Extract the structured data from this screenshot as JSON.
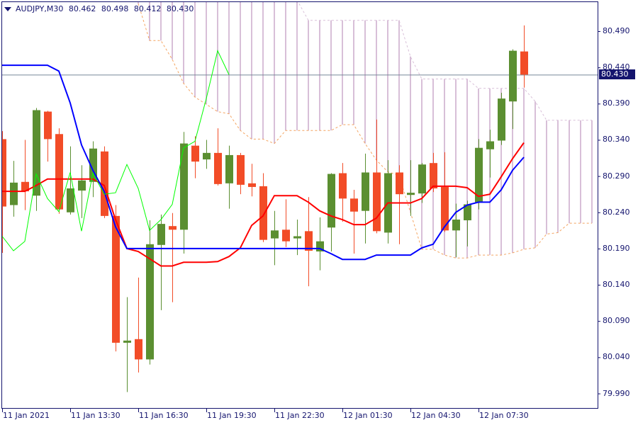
{
  "header": {
    "symbol_timeframe": "AUDJPY,M30",
    "open": "80.462",
    "high": "80.498",
    "low": "80.412",
    "close": "80.430"
  },
  "current_price": "80.430",
  "price_axis_labels": [
    "80.490",
    "80.440",
    "80.390",
    "80.340",
    "80.290",
    "80.240",
    "80.190",
    "80.140",
    "80.090",
    "80.040",
    "79.990"
  ],
  "time_axis_labels": [
    "11 Jan 2021",
    "11 Jan 13:30",
    "11 Jan 16:30",
    "11 Jan 19:30",
    "11 Jan 22:30",
    "12 Jan 01:30",
    "12 Jan 04:30",
    "12 Jan 07:30"
  ],
  "colors": {
    "bull": "#5b8f31",
    "bear": "#f24c27",
    "tenkan": "#ff0000",
    "kijun": "#0000ff",
    "chikou": "#00ff00",
    "senkou_a": "#f4a460",
    "senkou_b": "#d8bfd8",
    "axis_text": "#14146e",
    "price_line": "#778899"
  },
  "chart_data": {
    "type": "candlestick",
    "indicator": "ichimoku",
    "ylim": [
      79.969,
      80.533
    ],
    "grid": false,
    "x_ticks": [
      {
        "bar": 0,
        "label": "11 Jan 2021"
      },
      {
        "bar": 6,
        "label": "11 Jan 13:30"
      },
      {
        "bar": 12,
        "label": "11 Jan 16:30"
      },
      {
        "bar": 18,
        "label": "11 Jan 19:30"
      },
      {
        "bar": 24,
        "label": "11 Jan 22:30"
      },
      {
        "bar": 30,
        "label": "12 Jan 01:30"
      },
      {
        "bar": 36,
        "label": "12 Jan 04:30"
      },
      {
        "bar": 42,
        "label": "12 Jan 07:30"
      }
    ],
    "y_ticks": [
      80.49,
      80.44,
      80.39,
      80.34,
      80.29,
      80.24,
      80.19,
      80.14,
      80.09,
      80.04,
      79.99
    ],
    "candles": [
      [
        80.341,
        80.352,
        80.184,
        80.248
      ],
      [
        80.25,
        80.311,
        80.234,
        80.281
      ],
      [
        80.282,
        80.34,
        80.243,
        80.269
      ],
      [
        80.263,
        80.384,
        80.242,
        80.381
      ],
      [
        80.379,
        80.38,
        80.31,
        80.341
      ],
      [
        80.348,
        80.356,
        80.238,
        80.244
      ],
      [
        80.24,
        80.331,
        80.237,
        80.273
      ],
      [
        80.27,
        80.305,
        80.232,
        80.284
      ],
      [
        80.282,
        80.338,
        80.261,
        80.328
      ],
      [
        80.324,
        80.331,
        80.232,
        80.235
      ],
      [
        80.235,
        80.25,
        80.048,
        80.06
      ],
      [
        80.06,
        80.123,
        79.992,
        80.063
      ],
      [
        80.065,
        80.15,
        80.019,
        80.037
      ],
      [
        80.037,
        80.229,
        80.03,
        80.196
      ],
      [
        80.195,
        80.237,
        80.105,
        80.224
      ],
      [
        80.221,
        80.239,
        80.116,
        80.216
      ],
      [
        80.216,
        80.351,
        80.183,
        80.335
      ],
      [
        80.332,
        80.345,
        80.287,
        80.31
      ],
      [
        80.313,
        80.34,
        80.3,
        80.322
      ],
      [
        80.322,
        80.356,
        80.277,
        80.279
      ],
      [
        80.28,
        80.332,
        80.245,
        80.319
      ],
      [
        80.319,
        80.322,
        80.265,
        80.278
      ],
      [
        80.28,
        80.307,
        80.262,
        80.275
      ],
      [
        80.276,
        80.294,
        80.199,
        80.202
      ],
      [
        80.204,
        80.242,
        80.167,
        80.215
      ],
      [
        80.216,
        80.258,
        80.192,
        80.2
      ],
      [
        80.204,
        80.23,
        80.181,
        80.207
      ],
      [
        80.214,
        80.261,
        80.138,
        80.187
      ],
      [
        80.186,
        80.233,
        80.16,
        80.2
      ],
      [
        80.219,
        80.294,
        80.186,
        80.293
      ],
      [
        80.294,
        80.308,
        80.227,
        80.259
      ],
      [
        80.259,
        80.271,
        80.183,
        80.241
      ],
      [
        80.242,
        80.321,
        80.197,
        80.295
      ],
      [
        80.295,
        80.368,
        80.211,
        80.214
      ],
      [
        80.212,
        80.312,
        80.197,
        80.294
      ],
      [
        80.295,
        80.305,
        80.196,
        80.265
      ],
      [
        80.264,
        80.312,
        80.235,
        80.267
      ],
      [
        80.266,
        80.308,
        80.253,
        80.306
      ],
      [
        80.308,
        80.322,
        80.268,
        80.273
      ],
      [
        80.275,
        80.323,
        80.213,
        80.215
      ],
      [
        80.215,
        80.252,
        80.178,
        80.23
      ],
      [
        80.229,
        80.256,
        80.193,
        80.251
      ],
      [
        80.254,
        80.341,
        80.244,
        80.329
      ],
      [
        80.327,
        80.354,
        80.288,
        80.338
      ],
      [
        80.339,
        80.405,
        80.333,
        80.397
      ],
      [
        80.393,
        80.465,
        80.355,
        80.463
      ],
      [
        80.462,
        80.498,
        80.412,
        80.43
      ]
    ],
    "tenkan": [
      80.269,
      80.269,
      80.269,
      80.277,
      80.286,
      80.286,
      80.286,
      80.286,
      80.286,
      80.277,
      80.23,
      80.19,
      80.186,
      80.176,
      80.166,
      80.166,
      80.171,
      80.171,
      80.171,
      80.172,
      80.179,
      80.191,
      80.222,
      80.235,
      80.263,
      80.263,
      80.263,
      80.254,
      80.242,
      80.235,
      80.23,
      80.223,
      80.223,
      80.232,
      80.253,
      80.253,
      80.253,
      80.259,
      80.276,
      80.276,
      80.276,
      80.274,
      80.262,
      80.265,
      80.289,
      80.314,
      80.336
    ],
    "kijun": [
      80.443,
      80.443,
      80.443,
      80.443,
      80.443,
      80.435,
      80.391,
      80.333,
      80.298,
      80.269,
      80.22,
      80.19,
      80.19,
      80.19,
      80.19,
      80.19,
      80.19,
      80.19,
      80.19,
      80.19,
      80.19,
      80.19,
      80.19,
      80.19,
      80.19,
      80.19,
      80.19,
      80.19,
      80.19,
      80.183,
      80.175,
      80.175,
      80.175,
      80.181,
      80.181,
      80.181,
      80.181,
      80.191,
      80.196,
      80.22,
      80.24,
      80.25,
      80.254,
      80.254,
      80.271,
      80.298,
      80.316
    ],
    "chikou_shift": 26,
    "senkou_start_bar": 12,
    "senkou_a": [
      80.528,
      80.477,
      80.477,
      80.451,
      80.418,
      80.399,
      80.389,
      80.379,
      80.376,
      80.353,
      80.341,
      80.341,
      80.335,
      80.353,
      80.353,
      80.353,
      80.353,
      80.353,
      80.361,
      80.361,
      80.335,
      80.312,
      80.296,
      80.291,
      80.24,
      80.189,
      80.189,
      80.181,
      80.177,
      80.177,
      80.181,
      80.181,
      80.181,
      80.184,
      80.189,
      80.191,
      80.21,
      80.212,
      80.225,
      80.225,
      80.225
    ],
    "senkou_b": [
      80.545,
      80.545,
      80.545,
      80.545,
      80.545,
      80.545,
      80.545,
      80.545,
      80.545,
      80.545,
      80.545,
      80.545,
      80.545,
      80.545,
      80.533,
      80.505,
      80.505,
      80.505,
      80.505,
      80.505,
      80.505,
      80.505,
      80.505,
      80.505,
      80.455,
      80.424,
      80.424,
      80.424,
      80.424,
      80.424,
      80.411,
      80.411,
      80.411,
      80.411,
      80.411,
      80.393,
      80.367,
      80.367,
      80.367,
      80.367,
      80.367
    ]
  }
}
